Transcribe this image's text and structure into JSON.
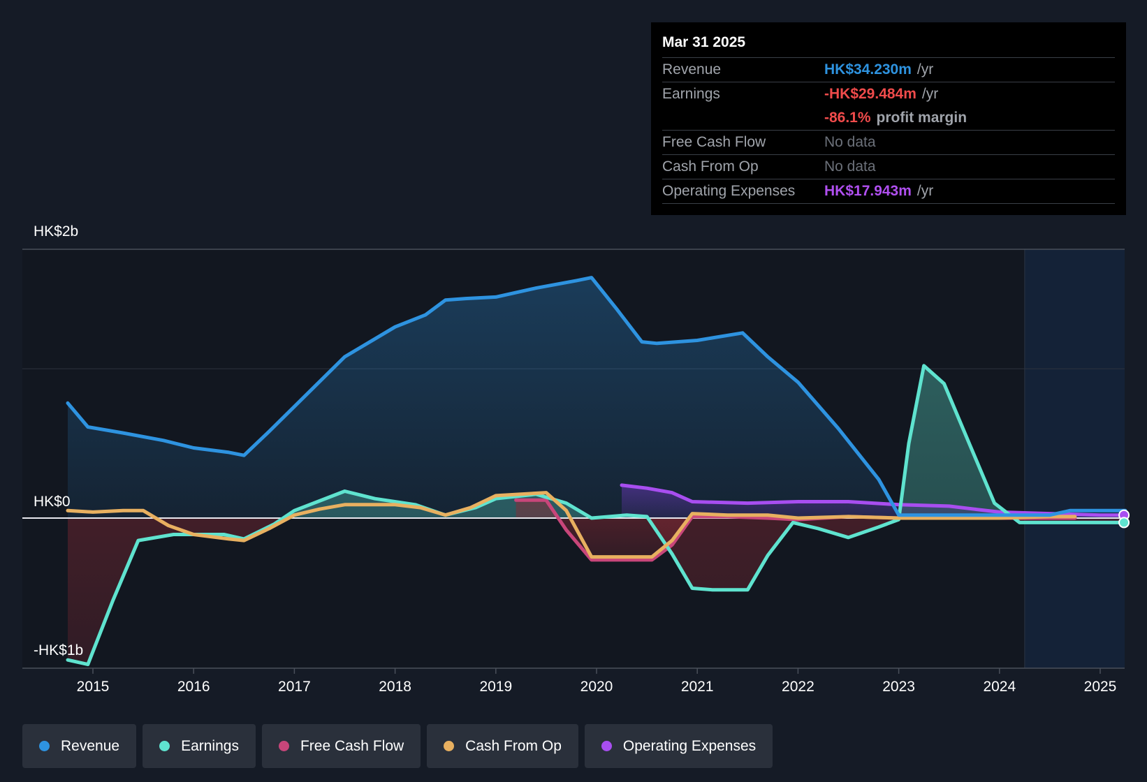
{
  "tooltip": {
    "date": "Mar 31 2025",
    "rows": {
      "revenue": {
        "label": "Revenue",
        "value": "HK$34.230m",
        "unit": "/yr"
      },
      "earnings": {
        "label": "Earnings",
        "value": "-HK$29.484m",
        "unit": "/yr"
      },
      "margin": {
        "value": "-86.1%",
        "unit": "profit margin"
      },
      "fcf": {
        "label": "Free Cash Flow",
        "value": "No data"
      },
      "cfo": {
        "label": "Cash From Op",
        "value": "No data"
      },
      "opex": {
        "label": "Operating Expenses",
        "value": "HK$17.943m",
        "unit": "/yr"
      }
    }
  },
  "axis": {
    "top": "HK$2b",
    "zero": "HK$0",
    "bottom": "-HK$1b"
  },
  "legend": [
    {
      "label": "Revenue",
      "color": "#2e93e0"
    },
    {
      "label": "Earnings",
      "color": "#5fe3cf"
    },
    {
      "label": "Free Cash Flow",
      "color": "#c8467a"
    },
    {
      "label": "Cash From Op",
      "color": "#e8b060"
    },
    {
      "label": "Operating Expenses",
      "color": "#a84ef0"
    }
  ],
  "chart_data": {
    "type": "line",
    "title": "",
    "xlabel": "",
    "ylabel": "",
    "x_ticks": [
      "2015",
      "2016",
      "2017",
      "2018",
      "2019",
      "2020",
      "2021",
      "2022",
      "2023",
      "2024",
      "2025"
    ],
    "xlim": [
      2014.5,
      2025.25
    ],
    "ylim": [
      -1.0,
      1.8
    ],
    "units": "HK$ billions",
    "forecast_start": 2024.25,
    "series": [
      {
        "name": "Revenue",
        "color": "#2e93e0",
        "fill": true,
        "points": [
          [
            2014.75,
            0.77
          ],
          [
            2014.95,
            0.61
          ],
          [
            2015.3,
            0.57
          ],
          [
            2015.7,
            0.52
          ],
          [
            2016.0,
            0.47
          ],
          [
            2016.35,
            0.44
          ],
          [
            2016.5,
            0.42
          ],
          [
            2016.75,
            0.58
          ],
          [
            2017.2,
            0.88
          ],
          [
            2017.5,
            1.08
          ],
          [
            2017.8,
            1.2
          ],
          [
            2018.0,
            1.28
          ],
          [
            2018.3,
            1.36
          ],
          [
            2018.5,
            1.46
          ],
          [
            2018.7,
            1.47
          ],
          [
            2019.0,
            1.48
          ],
          [
            2019.4,
            1.54
          ],
          [
            2019.8,
            1.59
          ],
          [
            2019.95,
            1.61
          ],
          [
            2020.2,
            1.4
          ],
          [
            2020.45,
            1.18
          ],
          [
            2020.6,
            1.17
          ],
          [
            2021.0,
            1.19
          ],
          [
            2021.45,
            1.24
          ],
          [
            2021.7,
            1.08
          ],
          [
            2022.0,
            0.91
          ],
          [
            2022.4,
            0.6
          ],
          [
            2022.8,
            0.26
          ],
          [
            2023.0,
            0.02
          ],
          [
            2023.5,
            0.02
          ],
          [
            2024.0,
            0.02
          ],
          [
            2024.5,
            0.02
          ],
          [
            2024.7,
            0.05
          ],
          [
            2025.25,
            0.05
          ]
        ]
      },
      {
        "name": "Earnings",
        "color": "#5fe3cf",
        "fill": true,
        "points": [
          [
            2014.75,
            -0.95
          ],
          [
            2014.95,
            -0.98
          ],
          [
            2015.2,
            -0.55
          ],
          [
            2015.45,
            -0.15
          ],
          [
            2015.8,
            -0.11
          ],
          [
            2016.3,
            -0.11
          ],
          [
            2016.5,
            -0.14
          ],
          [
            2016.8,
            -0.04
          ],
          [
            2017.0,
            0.05
          ],
          [
            2017.5,
            0.18
          ],
          [
            2017.8,
            0.13
          ],
          [
            2018.2,
            0.09
          ],
          [
            2018.5,
            0.02
          ],
          [
            2018.8,
            0.07
          ],
          [
            2019.0,
            0.13
          ],
          [
            2019.4,
            0.16
          ],
          [
            2019.7,
            0.1
          ],
          [
            2019.95,
            0.0
          ],
          [
            2020.3,
            0.02
          ],
          [
            2020.5,
            0.01
          ],
          [
            2020.75,
            -0.24
          ],
          [
            2020.95,
            -0.47
          ],
          [
            2021.15,
            -0.48
          ],
          [
            2021.5,
            -0.48
          ],
          [
            2021.7,
            -0.25
          ],
          [
            2021.95,
            -0.03
          ],
          [
            2022.2,
            -0.07
          ],
          [
            2022.5,
            -0.13
          ],
          [
            2022.8,
            -0.06
          ],
          [
            2023.0,
            -0.01
          ],
          [
            2023.1,
            0.5
          ],
          [
            2023.25,
            1.02
          ],
          [
            2023.45,
            0.9
          ],
          [
            2023.7,
            0.5
          ],
          [
            2023.95,
            0.1
          ],
          [
            2024.2,
            -0.03
          ],
          [
            2025.25,
            -0.03
          ]
        ]
      },
      {
        "name": "Free Cash Flow",
        "color": "#c8467a",
        "fill": true,
        "points": [
          [
            2019.2,
            0.12
          ],
          [
            2019.5,
            0.12
          ],
          [
            2019.7,
            -0.08
          ],
          [
            2019.95,
            -0.28
          ],
          [
            2020.3,
            -0.28
          ],
          [
            2020.55,
            -0.28
          ],
          [
            2020.75,
            -0.18
          ],
          [
            2020.95,
            0.01
          ],
          [
            2021.3,
            0.01
          ],
          [
            2021.7,
            0.0
          ],
          [
            2022.0,
            -0.01
          ],
          [
            2022.5,
            0.01
          ],
          [
            2023.0,
            0.0
          ],
          [
            2023.5,
            0.0
          ],
          [
            2024.0,
            0.0
          ],
          [
            2024.5,
            0.0
          ],
          [
            2024.75,
            0.0
          ]
        ]
      },
      {
        "name": "Cash From Op",
        "color": "#e8b060",
        "fill": false,
        "points": [
          [
            2014.75,
            0.05
          ],
          [
            2015.0,
            0.04
          ],
          [
            2015.3,
            0.05
          ],
          [
            2015.5,
            0.05
          ],
          [
            2015.75,
            -0.05
          ],
          [
            2016.0,
            -0.11
          ],
          [
            2016.35,
            -0.14
          ],
          [
            2016.5,
            -0.15
          ],
          [
            2016.75,
            -0.07
          ],
          [
            2017.0,
            0.02
          ],
          [
            2017.25,
            0.06
          ],
          [
            2017.5,
            0.09
          ],
          [
            2017.8,
            0.09
          ],
          [
            2018.0,
            0.09
          ],
          [
            2018.25,
            0.07
          ],
          [
            2018.5,
            0.02
          ],
          [
            2018.75,
            0.07
          ],
          [
            2019.0,
            0.15
          ],
          [
            2019.5,
            0.17
          ],
          [
            2019.7,
            0.05
          ],
          [
            2019.95,
            -0.26
          ],
          [
            2020.3,
            -0.26
          ],
          [
            2020.55,
            -0.26
          ],
          [
            2020.75,
            -0.15
          ],
          [
            2020.95,
            0.03
          ],
          [
            2021.3,
            0.02
          ],
          [
            2021.7,
            0.02
          ],
          [
            2022.0,
            0.0
          ],
          [
            2022.5,
            0.01
          ],
          [
            2023.0,
            0.0
          ],
          [
            2023.5,
            0.0
          ],
          [
            2024.0,
            0.0
          ],
          [
            2024.5,
            0.01
          ],
          [
            2024.75,
            0.01
          ]
        ]
      },
      {
        "name": "Operating Expenses",
        "color": "#a84ef0",
        "fill": true,
        "points": [
          [
            2020.25,
            0.22
          ],
          [
            2020.5,
            0.2
          ],
          [
            2020.75,
            0.17
          ],
          [
            2020.95,
            0.11
          ],
          [
            2021.5,
            0.1
          ],
          [
            2022.0,
            0.11
          ],
          [
            2022.5,
            0.11
          ],
          [
            2023.0,
            0.09
          ],
          [
            2023.5,
            0.08
          ],
          [
            2023.75,
            0.06
          ],
          [
            2024.0,
            0.04
          ],
          [
            2024.5,
            0.03
          ],
          [
            2025.0,
            0.02
          ],
          [
            2025.25,
            0.02
          ]
        ]
      }
    ]
  }
}
